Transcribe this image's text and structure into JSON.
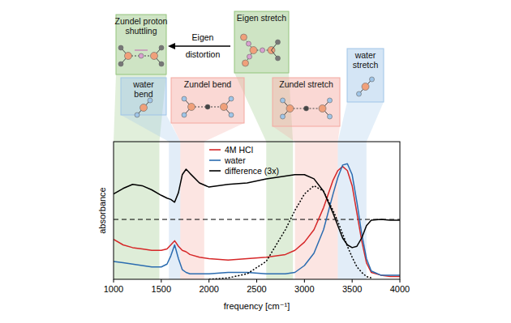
{
  "chart_data": {
    "type": "line",
    "x_label": "frequency [cm⁻¹]",
    "y_label": "absorbance",
    "xlim": [
      1000,
      4000
    ],
    "xticks": [
      1000,
      1500,
      2000,
      2500,
      3000,
      3500,
      4000
    ],
    "ylim": [
      0,
      1
    ],
    "tick_labels": "x",
    "grid": false,
    "legend": "upper center",
    "difference_baseline": 0.435,
    "x": [
      1000,
      1100,
      1200,
      1300,
      1400,
      1500,
      1560,
      1600,
      1640,
      1680,
      1720,
      1760,
      1800,
      1900,
      2000,
      2200,
      2400,
      2600,
      2800,
      2900,
      3000,
      3100,
      3200,
      3300,
      3350,
      3400,
      3450,
      3500,
      3550,
      3600,
      3650,
      3700,
      3800,
      3900,
      4000
    ],
    "series": [
      {
        "name": "4M HCl",
        "color": "#d62728",
        "line_style": "solid",
        "values": [
          0.29,
          0.25,
          0.23,
          0.22,
          0.21,
          0.21,
          0.22,
          0.25,
          0.28,
          0.24,
          0.21,
          0.2,
          0.18,
          0.16,
          0.15,
          0.14,
          0.15,
          0.16,
          0.18,
          0.21,
          0.27,
          0.36,
          0.52,
          0.72,
          0.79,
          0.82,
          0.79,
          0.68,
          0.48,
          0.28,
          0.12,
          0.05,
          0.03,
          0.02,
          0.02
        ]
      },
      {
        "name": "water",
        "color": "#2b6cb0",
        "line_style": "solid",
        "values": [
          0.13,
          0.12,
          0.11,
          0.1,
          0.09,
          0.09,
          0.11,
          0.17,
          0.25,
          0.15,
          0.07,
          0.05,
          0.04,
          0.04,
          0.04,
          0.05,
          0.05,
          0.04,
          0.04,
          0.05,
          0.1,
          0.19,
          0.36,
          0.62,
          0.74,
          0.83,
          0.84,
          0.76,
          0.56,
          0.33,
          0.15,
          0.06,
          0.03,
          0.03,
          0.03
        ]
      },
      {
        "name": "difference (3x)",
        "color": "#000000",
        "line_style": "solid",
        "values": [
          0.62,
          0.66,
          0.69,
          0.68,
          0.65,
          0.61,
          0.59,
          0.58,
          0.56,
          0.63,
          0.76,
          0.8,
          0.77,
          0.7,
          0.67,
          0.69,
          0.7,
          0.73,
          0.75,
          0.76,
          0.76,
          0.73,
          0.64,
          0.48,
          0.39,
          0.3,
          0.25,
          0.23,
          0.24,
          0.3,
          0.39,
          0.43,
          0.435,
          0.43,
          0.43
        ]
      },
      {
        "color": "#000000",
        "line_style": "dotted",
        "values": [
          null,
          null,
          null,
          null,
          null,
          null,
          null,
          null,
          null,
          null,
          null,
          null,
          null,
          null,
          0.0,
          0.01,
          0.04,
          0.13,
          0.36,
          0.5,
          0.62,
          0.68,
          0.64,
          0.5,
          0.42,
          0.33,
          0.24,
          0.16,
          0.09,
          0.05,
          0.02,
          0.01,
          null,
          null,
          null
        ]
      }
    ],
    "annotations": [
      {
        "label": "Zundel proton\nshuttling",
        "range": [
          1000,
          1480
        ],
        "color": "#93c47d"
      },
      {
        "label": "water\nbend",
        "range": [
          1580,
          1700
        ],
        "color": "#9fc5e8"
      },
      {
        "label": "Zundel bend",
        "range": [
          1700,
          1950
        ],
        "color": "#f4a8a0"
      },
      {
        "label": "Eigen stretch",
        "range": [
          2600,
          2880
        ],
        "color": "#93c47d"
      },
      {
        "label": "Zundel stretch",
        "range": [
          2900,
          3350
        ],
        "color": "#f4a8a0"
      },
      {
        "label": "water\nstretch",
        "range": [
          3350,
          3650
        ],
        "color": "#9fc5e8"
      }
    ],
    "arrow_label": "Eigen\ndistortion"
  }
}
